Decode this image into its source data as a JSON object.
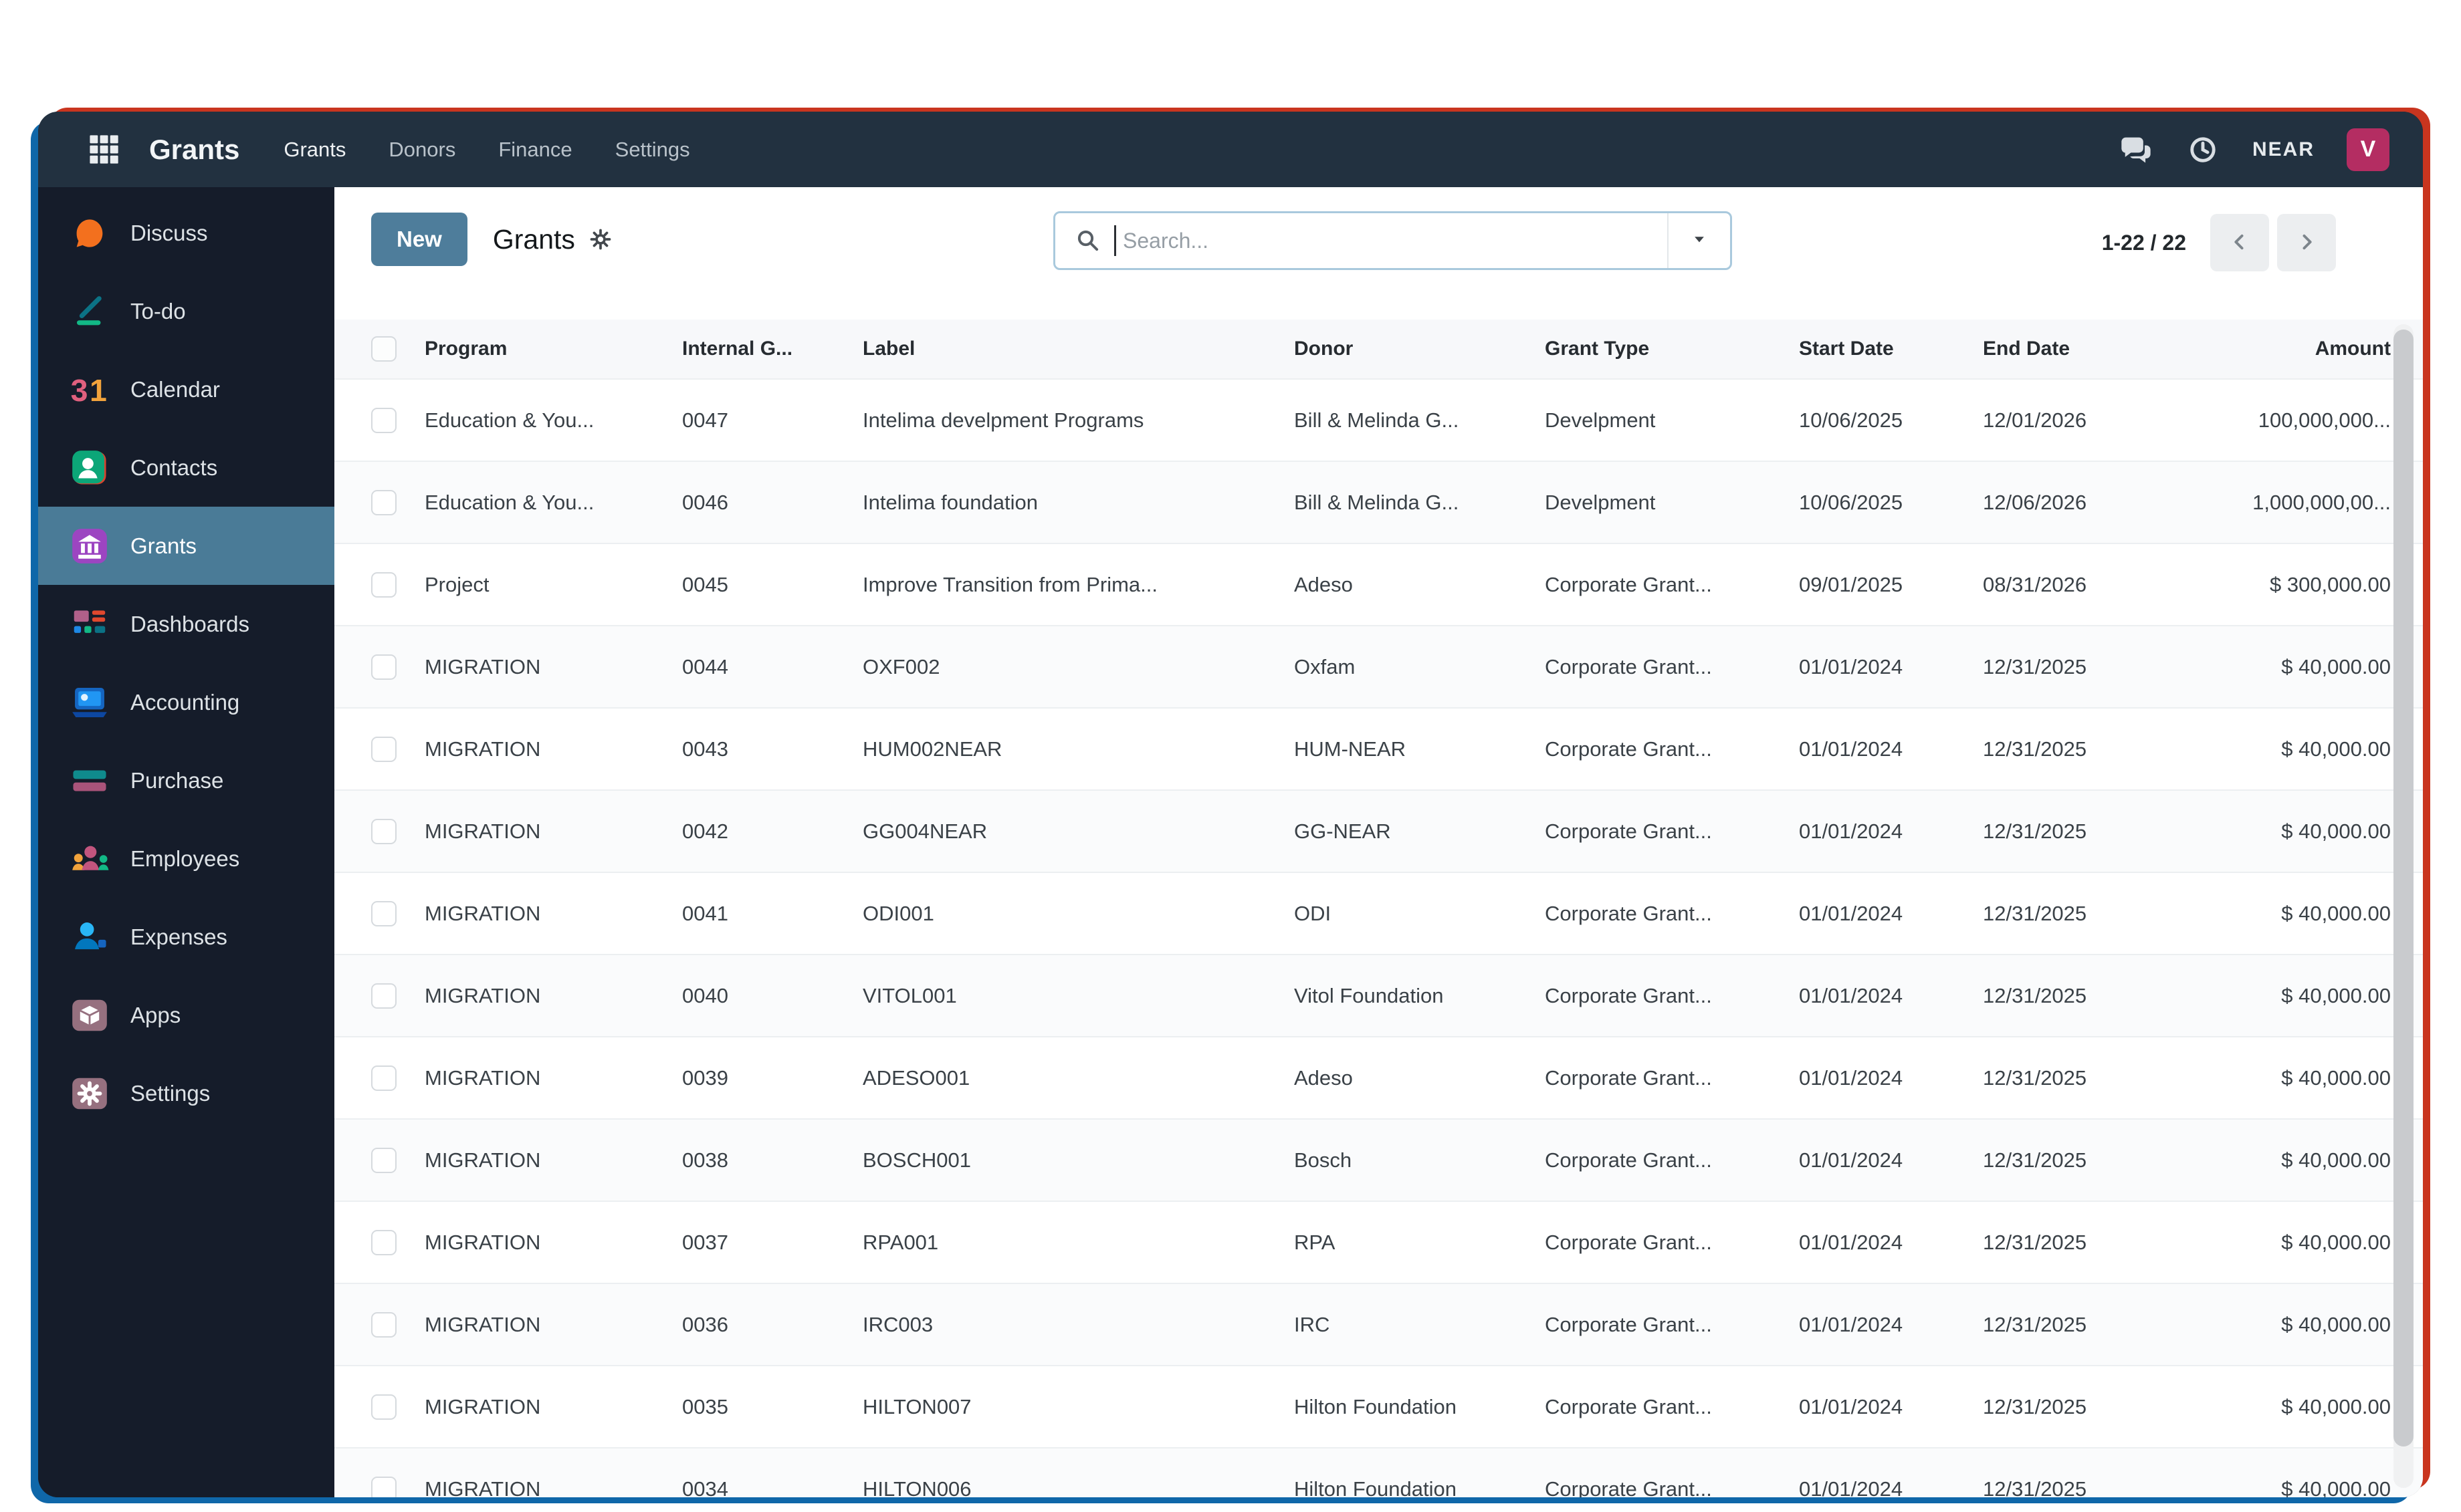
{
  "topbar": {
    "brand": "Grants",
    "grid_icon": "apps-grid-icon",
    "menu": [
      {
        "label": "Grants",
        "active": true
      },
      {
        "label": "Donors",
        "active": false
      },
      {
        "label": "Finance",
        "active": false
      },
      {
        "label": "Settings",
        "active": false
      }
    ],
    "right": {
      "chat_icon": "chat-icon",
      "clock_icon": "clock-icon",
      "company": "NEAR",
      "avatar_letter": "V"
    }
  },
  "sidebar": {
    "calendar_badge": "31",
    "items": [
      {
        "label": "Discuss",
        "icon": "discuss-icon",
        "active": false
      },
      {
        "label": "To-do",
        "icon": "todo-icon",
        "active": false
      },
      {
        "label": "Calendar",
        "icon": "calendar-icon",
        "active": false
      },
      {
        "label": "Contacts",
        "icon": "contacts-icon",
        "active": false
      },
      {
        "label": "Grants",
        "icon": "grants-icon",
        "active": true
      },
      {
        "label": "Dashboards",
        "icon": "dashboards-icon",
        "active": false
      },
      {
        "label": "Accounting",
        "icon": "accounting-icon",
        "active": false
      },
      {
        "label": "Purchase",
        "icon": "purchase-icon",
        "active": false
      },
      {
        "label": "Employees",
        "icon": "employees-icon",
        "active": false
      },
      {
        "label": "Expenses",
        "icon": "expenses-icon",
        "active": false
      },
      {
        "label": "Apps",
        "icon": "apps-icon",
        "active": false
      },
      {
        "label": "Settings",
        "icon": "settings-icon",
        "active": false
      }
    ]
  },
  "controls": {
    "new_label": "New",
    "title": "Grants",
    "title_gear_icon": "gear-icon",
    "search": {
      "placeholder": "Search...",
      "search_icon": "search-icon",
      "caret_icon": "caret-down-icon"
    },
    "pager": {
      "label": "1-22 / 22",
      "prev_icon": "chevron-left-icon",
      "next_icon": "chevron-right-icon"
    }
  },
  "table": {
    "columns": [
      "Program",
      "Internal G...",
      "Label",
      "Donor",
      "Grant Type",
      "Start Date",
      "End Date",
      "Amount"
    ],
    "rows": [
      {
        "program": "Education & You...",
        "internal": "0047",
        "label": "Intelima develpment Programs",
        "donor": "Bill & Melinda G...",
        "grant_type": "Develpment",
        "start_date": "10/06/2025",
        "end_date": "12/01/2026",
        "amount": "100,000,000..."
      },
      {
        "program": "Education & You...",
        "internal": "0046",
        "label": "Intelima foundation",
        "donor": "Bill & Melinda G...",
        "grant_type": "Develpment",
        "start_date": "10/06/2025",
        "end_date": "12/06/2026",
        "amount": "1,000,000,00..."
      },
      {
        "program": "Project",
        "internal": "0045",
        "label": "Improve Transition from Prima...",
        "donor": "Adeso",
        "grant_type": "Corporate Grant...",
        "start_date": "09/01/2025",
        "end_date": "08/31/2026",
        "amount": "$ 300,000.00"
      },
      {
        "program": "MIGRATION",
        "internal": "0044",
        "label": "OXF002",
        "donor": "Oxfam",
        "grant_type": "Corporate Grant...",
        "start_date": "01/01/2024",
        "end_date": "12/31/2025",
        "amount": "$ 40,000.00"
      },
      {
        "program": "MIGRATION",
        "internal": "0043",
        "label": "HUM002NEAR",
        "donor": "HUM-NEAR",
        "grant_type": "Corporate Grant...",
        "start_date": "01/01/2024",
        "end_date": "12/31/2025",
        "amount": "$ 40,000.00"
      },
      {
        "program": "MIGRATION",
        "internal": "0042",
        "label": "GG004NEAR",
        "donor": "GG-NEAR",
        "grant_type": "Corporate Grant...",
        "start_date": "01/01/2024",
        "end_date": "12/31/2025",
        "amount": "$ 40,000.00"
      },
      {
        "program": "MIGRATION",
        "internal": "0041",
        "label": "ODI001",
        "donor": "ODI",
        "grant_type": "Corporate Grant...",
        "start_date": "01/01/2024",
        "end_date": "12/31/2025",
        "amount": "$ 40,000.00"
      },
      {
        "program": "MIGRATION",
        "internal": "0040",
        "label": "VITOL001",
        "donor": "Vitol Foundation",
        "grant_type": "Corporate Grant...",
        "start_date": "01/01/2024",
        "end_date": "12/31/2025",
        "amount": "$ 40,000.00"
      },
      {
        "program": "MIGRATION",
        "internal": "0039",
        "label": "ADESO001",
        "donor": "Adeso",
        "grant_type": "Corporate Grant...",
        "start_date": "01/01/2024",
        "end_date": "12/31/2025",
        "amount": "$ 40,000.00"
      },
      {
        "program": "MIGRATION",
        "internal": "0038",
        "label": "BOSCH001",
        "donor": "Bosch",
        "grant_type": "Corporate Grant...",
        "start_date": "01/01/2024",
        "end_date": "12/31/2025",
        "amount": "$ 40,000.00"
      },
      {
        "program": "MIGRATION",
        "internal": "0037",
        "label": "RPA001",
        "donor": "RPA",
        "grant_type": "Corporate Grant...",
        "start_date": "01/01/2024",
        "end_date": "12/31/2025",
        "amount": "$ 40,000.00"
      },
      {
        "program": "MIGRATION",
        "internal": "0036",
        "label": "IRC003",
        "donor": "IRC",
        "grant_type": "Corporate Grant...",
        "start_date": "01/01/2024",
        "end_date": "12/31/2025",
        "amount": "$ 40,000.00"
      },
      {
        "program": "MIGRATION",
        "internal": "0035",
        "label": "HILTON007",
        "donor": "Hilton Foundation",
        "grant_type": "Corporate Grant...",
        "start_date": "01/01/2024",
        "end_date": "12/31/2025",
        "amount": "$ 40,000.00"
      },
      {
        "program": "MIGRATION",
        "internal": "0034",
        "label": "HILTON006",
        "donor": "Hilton Foundation",
        "grant_type": "Corporate Grant...",
        "start_date": "01/01/2024",
        "end_date": "12/31/2025",
        "amount": "$ 40,000.00"
      }
    ]
  },
  "colors": {
    "topbar": "#223140",
    "sidebar": "#151c2a",
    "active_item": "#4a7b97",
    "button_primary": "#4e7d9b",
    "avatar_bg": "#b42d62",
    "search_border": "#a9c9dd",
    "accent_blue": "#0f67a9",
    "accent_red": "#c9351f"
  }
}
